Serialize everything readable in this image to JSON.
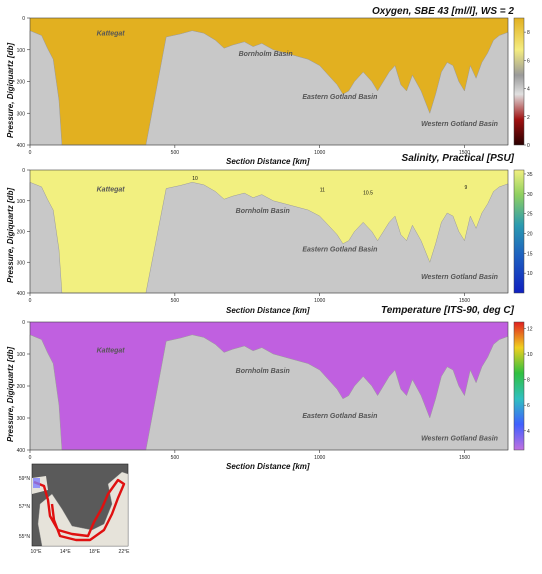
{
  "colors": {
    "seabed": "#c8c8c8",
    "oxygen_high": "#e2b020",
    "oxygen_low": "#3a0606",
    "salinity_low": "#f2f080",
    "salinity_high": "#1a3ec4",
    "temperature_cold": "#c060e0",
    "temperature_warm": "#e03020"
  },
  "chart_data": [
    {
      "type": "heatmap",
      "title": "Oxygen, SBE 43 [ml/l], WS = 2",
      "xlabel": "Section Distance [km]",
      "ylabel": "Pressure, Digiquartz [db]",
      "xlim": [
        0,
        1650
      ],
      "ylim": [
        400,
        0
      ],
      "x_ticks": [
        "0",
        "500",
        "1000",
        "1500"
      ],
      "y_ticks": [
        "0",
        "100",
        "200",
        "300",
        "400"
      ],
      "colorbar_ticks": [
        "0",
        "2",
        "4",
        "6",
        "8"
      ],
      "colorbar_range": [
        0,
        9
      ],
      "annotations": [
        {
          "text": "Kattegat",
          "x": 230,
          "y": 55
        },
        {
          "text": "Bornholm Basin",
          "x": 720,
          "y": 120
        },
        {
          "text": "Eastern Gotland Basin",
          "x": 940,
          "y": 255
        },
        {
          "text": "Western Gotland Basin",
          "x": 1350,
          "y": 340
        }
      ]
    },
    {
      "type": "heatmap",
      "title": "Salinity, Practical [PSU]",
      "xlabel": "Section Distance [km]",
      "ylabel": "Pressure, Digiquartz [db]",
      "xlim": [
        0,
        1650
      ],
      "ylim": [
        400,
        0
      ],
      "x_ticks": [
        "0",
        "500",
        "1000",
        "1500"
      ],
      "y_ticks": [
        "0",
        "100",
        "200",
        "300",
        "400"
      ],
      "colorbar_ticks": [
        "10",
        "15",
        "20",
        "25",
        "30",
        "35"
      ],
      "colorbar_range": [
        5,
        36
      ],
      "contour_labels": [
        {
          "text": "10",
          "x": 560,
          "y": 32
        },
        {
          "text": "11",
          "x": 1000,
          "y": 70
        },
        {
          "text": "10.5",
          "x": 1150,
          "y": 80
        },
        {
          "text": "9",
          "x": 1500,
          "y": 62
        }
      ],
      "annotations": [
        {
          "text": "Kattegat",
          "x": 230,
          "y": 70
        },
        {
          "text": "Bornholm Basin",
          "x": 710,
          "y": 140
        },
        {
          "text": "Eastern Gotland Basin",
          "x": 940,
          "y": 265
        },
        {
          "text": "Western Gotland Basin",
          "x": 1350,
          "y": 355
        }
      ]
    },
    {
      "type": "heatmap",
      "title": "Temperature [ITS-90, deg C]",
      "xlabel": "Section Distance [km]",
      "ylabel": "Pressure, Digiquartz [db]",
      "xlim": [
        0,
        1650
      ],
      "ylim": [
        400,
        0
      ],
      "x_ticks": [
        "0",
        "500",
        "1000",
        "1500"
      ],
      "y_ticks": [
        "0",
        "100",
        "200",
        "300",
        "400"
      ],
      "colorbar_ticks": [
        "4",
        "6",
        "8",
        "10",
        "12"
      ],
      "colorbar_range": [
        2.5,
        12.5
      ],
      "annotations": [
        {
          "text": "Kattegat",
          "x": 230,
          "y": 95
        },
        {
          "text": "Bornholm Basin",
          "x": 710,
          "y": 160
        },
        {
          "text": "Eastern Gotland Basin",
          "x": 940,
          "y": 300
        },
        {
          "text": "Western Gotland Basin",
          "x": 1350,
          "y": 370
        }
      ]
    }
  ],
  "map": {
    "lat_labels": [
      "59°N",
      "57°N",
      "55°N"
    ],
    "lon_labels": [
      "10°E",
      "14°E",
      "18°E",
      "22°E"
    ]
  }
}
